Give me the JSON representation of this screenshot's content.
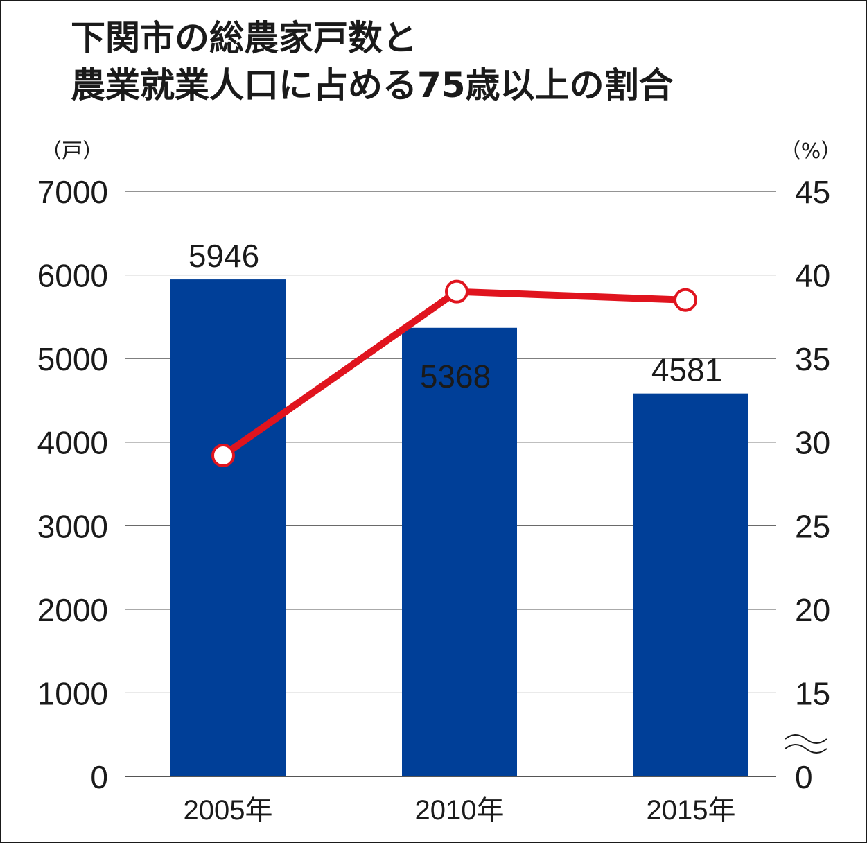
{
  "title": {
    "line1": "下関市の総農家戸数と",
    "line2": "農業就業人口に占める75歳以上の割合"
  },
  "colors": {
    "bar": "#003f98",
    "line": "#e0141e",
    "grid": "#555555",
    "text": "#1a1a1a",
    "label_inside": "#ffffff"
  },
  "chart_data": {
    "type": "bar",
    "categories": [
      "2005年",
      "2010年",
      "2015年"
    ],
    "series": [
      {
        "type": "bar",
        "axis": "left",
        "values": [
          5946,
          5368,
          4581
        ],
        "data_labels": [
          "5946",
          "5368",
          "4581"
        ]
      },
      {
        "type": "line",
        "axis": "right",
        "values": [
          29.2,
          39.0,
          38.5
        ]
      }
    ],
    "y_left": {
      "unit_label": "（戸）",
      "ylim": [
        0,
        7000
      ],
      "ticks": [
        "0",
        "1000",
        "2000",
        "3000",
        "4000",
        "5000",
        "6000",
        "7000"
      ]
    },
    "y_right": {
      "unit_label": "（%）",
      "ylim": [
        10,
        45
      ],
      "axis_break": true,
      "axis_break_symbol": "≈",
      "ticks": [
        "0",
        "15",
        "20",
        "25",
        "30",
        "35",
        "40",
        "45"
      ]
    },
    "grid": true
  }
}
